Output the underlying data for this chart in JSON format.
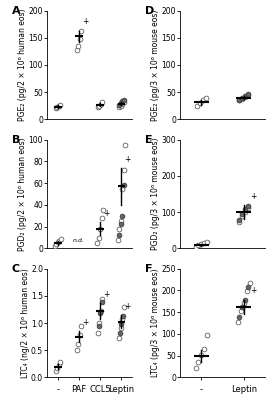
{
  "panel_A": {
    "label": "A",
    "ylabel": "PGE₂ (pg/2 × 10⁶ human eos)",
    "ylim": [
      0,
      200
    ],
    "yticks": [
      0,
      50,
      100,
      150,
      200
    ],
    "groups": [
      "-",
      "PAF",
      "CCL5",
      "Leptin"
    ],
    "open_dots": {
      "0": [
        20,
        22,
        25,
        27
      ],
      "1": [
        128,
        135,
        148,
        162
      ],
      "2": [
        22,
        25,
        28,
        32
      ],
      "3": [
        22,
        25,
        28,
        32
      ]
    },
    "filled_dots": {
      "3": [
        26,
        30,
        33,
        36
      ]
    },
    "means": [
      23,
      153,
      27,
      29
    ],
    "errors": [
      2.5,
      10,
      3,
      3
    ],
    "plus_markers": [
      1
    ],
    "nd_group": null
  },
  "panel_B": {
    "label": "B",
    "ylabel": "PGD₂ (pg/2 × 10⁶ human eos)",
    "ylim": [
      0,
      100
    ],
    "yticks": [
      0,
      20,
      40,
      60,
      80,
      100
    ],
    "groups": [
      "-",
      "PAF",
      "CCL5",
      "Leptin"
    ],
    "open_dots": {
      "0": [
        2,
        4,
        6,
        7,
        9
      ],
      "2": [
        5,
        10,
        18,
        28,
        35
      ],
      "3": [
        8,
        18,
        25,
        55,
        72,
        95
      ]
    },
    "filled_dots": {
      "3": [
        12,
        22,
        30,
        58
      ]
    },
    "means": [
      5,
      null,
      18,
      57
    ],
    "errors": [
      1.5,
      null,
      6,
      17
    ],
    "plus_markers": [
      2,
      3
    ],
    "nd_group": 1,
    "nd_text": "n.d."
  },
  "panel_C": {
    "label": "C",
    "ylabel": "LTC₄ (ng/2 × 10⁶ human eos)",
    "ylim": [
      0,
      2
    ],
    "yticks": [
      0,
      0.5,
      1.0,
      1.5,
      2.0
    ],
    "groups": [
      "-",
      "PAF",
      "CCL5",
      "Leptin"
    ],
    "open_dots": {
      "0": [
        0.12,
        0.18,
        0.22,
        0.28
      ],
      "1": [
        0.5,
        0.62,
        0.78,
        0.95
      ],
      "2": [
        0.82,
        1.0,
        1.22,
        1.45
      ],
      "3": [
        0.72,
        0.9,
        1.08,
        1.3
      ]
    },
    "filled_dots": {
      "2": [
        0.95,
        1.18,
        1.38
      ],
      "3": [
        0.82,
        0.98,
        1.12
      ]
    },
    "means": [
      0.2,
      0.75,
      1.22,
      1.02
    ],
    "errors": [
      0.04,
      0.1,
      0.14,
      0.12
    ],
    "plus_markers": [
      1,
      2,
      3
    ],
    "xlabel_groups": [
      "-",
      "PAF",
      "CCL5",
      "Leptin"
    ]
  },
  "panel_D": {
    "label": "D",
    "ylabel": "PGE₂ (pg/3 × 10⁶ mouse eos)",
    "ylim": [
      0,
      200
    ],
    "yticks": [
      0,
      50,
      100,
      150,
      200
    ],
    "groups": [
      "-",
      "Leptin"
    ],
    "open_dots": {
      "0": [
        25,
        30,
        35,
        40
      ],
      "1": [
        35,
        38,
        42,
        45
      ]
    },
    "filled_dots": {
      "1": [
        36,
        40,
        43,
        46
      ]
    },
    "means": [
      31,
      40
    ],
    "errors": [
      4,
      3
    ],
    "nd_group": null
  },
  "panel_E": {
    "label": "E",
    "ylabel": "PGD₂ (pg/3 × 10⁶ mouse eos)",
    "ylim": [
      0,
      300
    ],
    "yticks": [
      0,
      100,
      200,
      300
    ],
    "groups": [
      "-",
      "Leptin"
    ],
    "open_dots": {
      "0": [
        5,
        8,
        12,
        15,
        18
      ],
      "1": [
        72,
        88,
        100,
        112
      ]
    },
    "filled_dots": {
      "1": [
        78,
        95,
        108,
        118
      ]
    },
    "means": [
      10,
      100
    ],
    "errors": [
      3,
      20
    ],
    "plus_markers": [
      1
    ],
    "nd_group": null
  },
  "panel_F": {
    "label": "F",
    "ylabel": "LTC₄ (pg/3 × 10⁶ mouse eos)",
    "ylim": [
      0,
      250
    ],
    "yticks": [
      0,
      50,
      100,
      150,
      200,
      250
    ],
    "groups": [
      "-",
      "Leptin"
    ],
    "open_dots": {
      "0": [
        22,
        35,
        52,
        65,
        98
      ],
      "1": [
        128,
        152,
        172,
        198,
        218
      ]
    },
    "filled_dots": {
      "1": [
        138,
        162,
        178,
        208
      ]
    },
    "means": [
      50,
      162
    ],
    "errors": [
      14,
      17
    ],
    "plus_markers": [
      1
    ],
    "xlabel_groups": [
      "-",
      "Leptin"
    ]
  },
  "dot_size": 12,
  "mean_linewidth": 1.5,
  "errorbar_linewidth": 1.0,
  "capsize": 2,
  "label_fontsize": 6,
  "tick_fontsize": 5.5,
  "panel_label_fontsize": 8,
  "background_color": "#ffffff"
}
